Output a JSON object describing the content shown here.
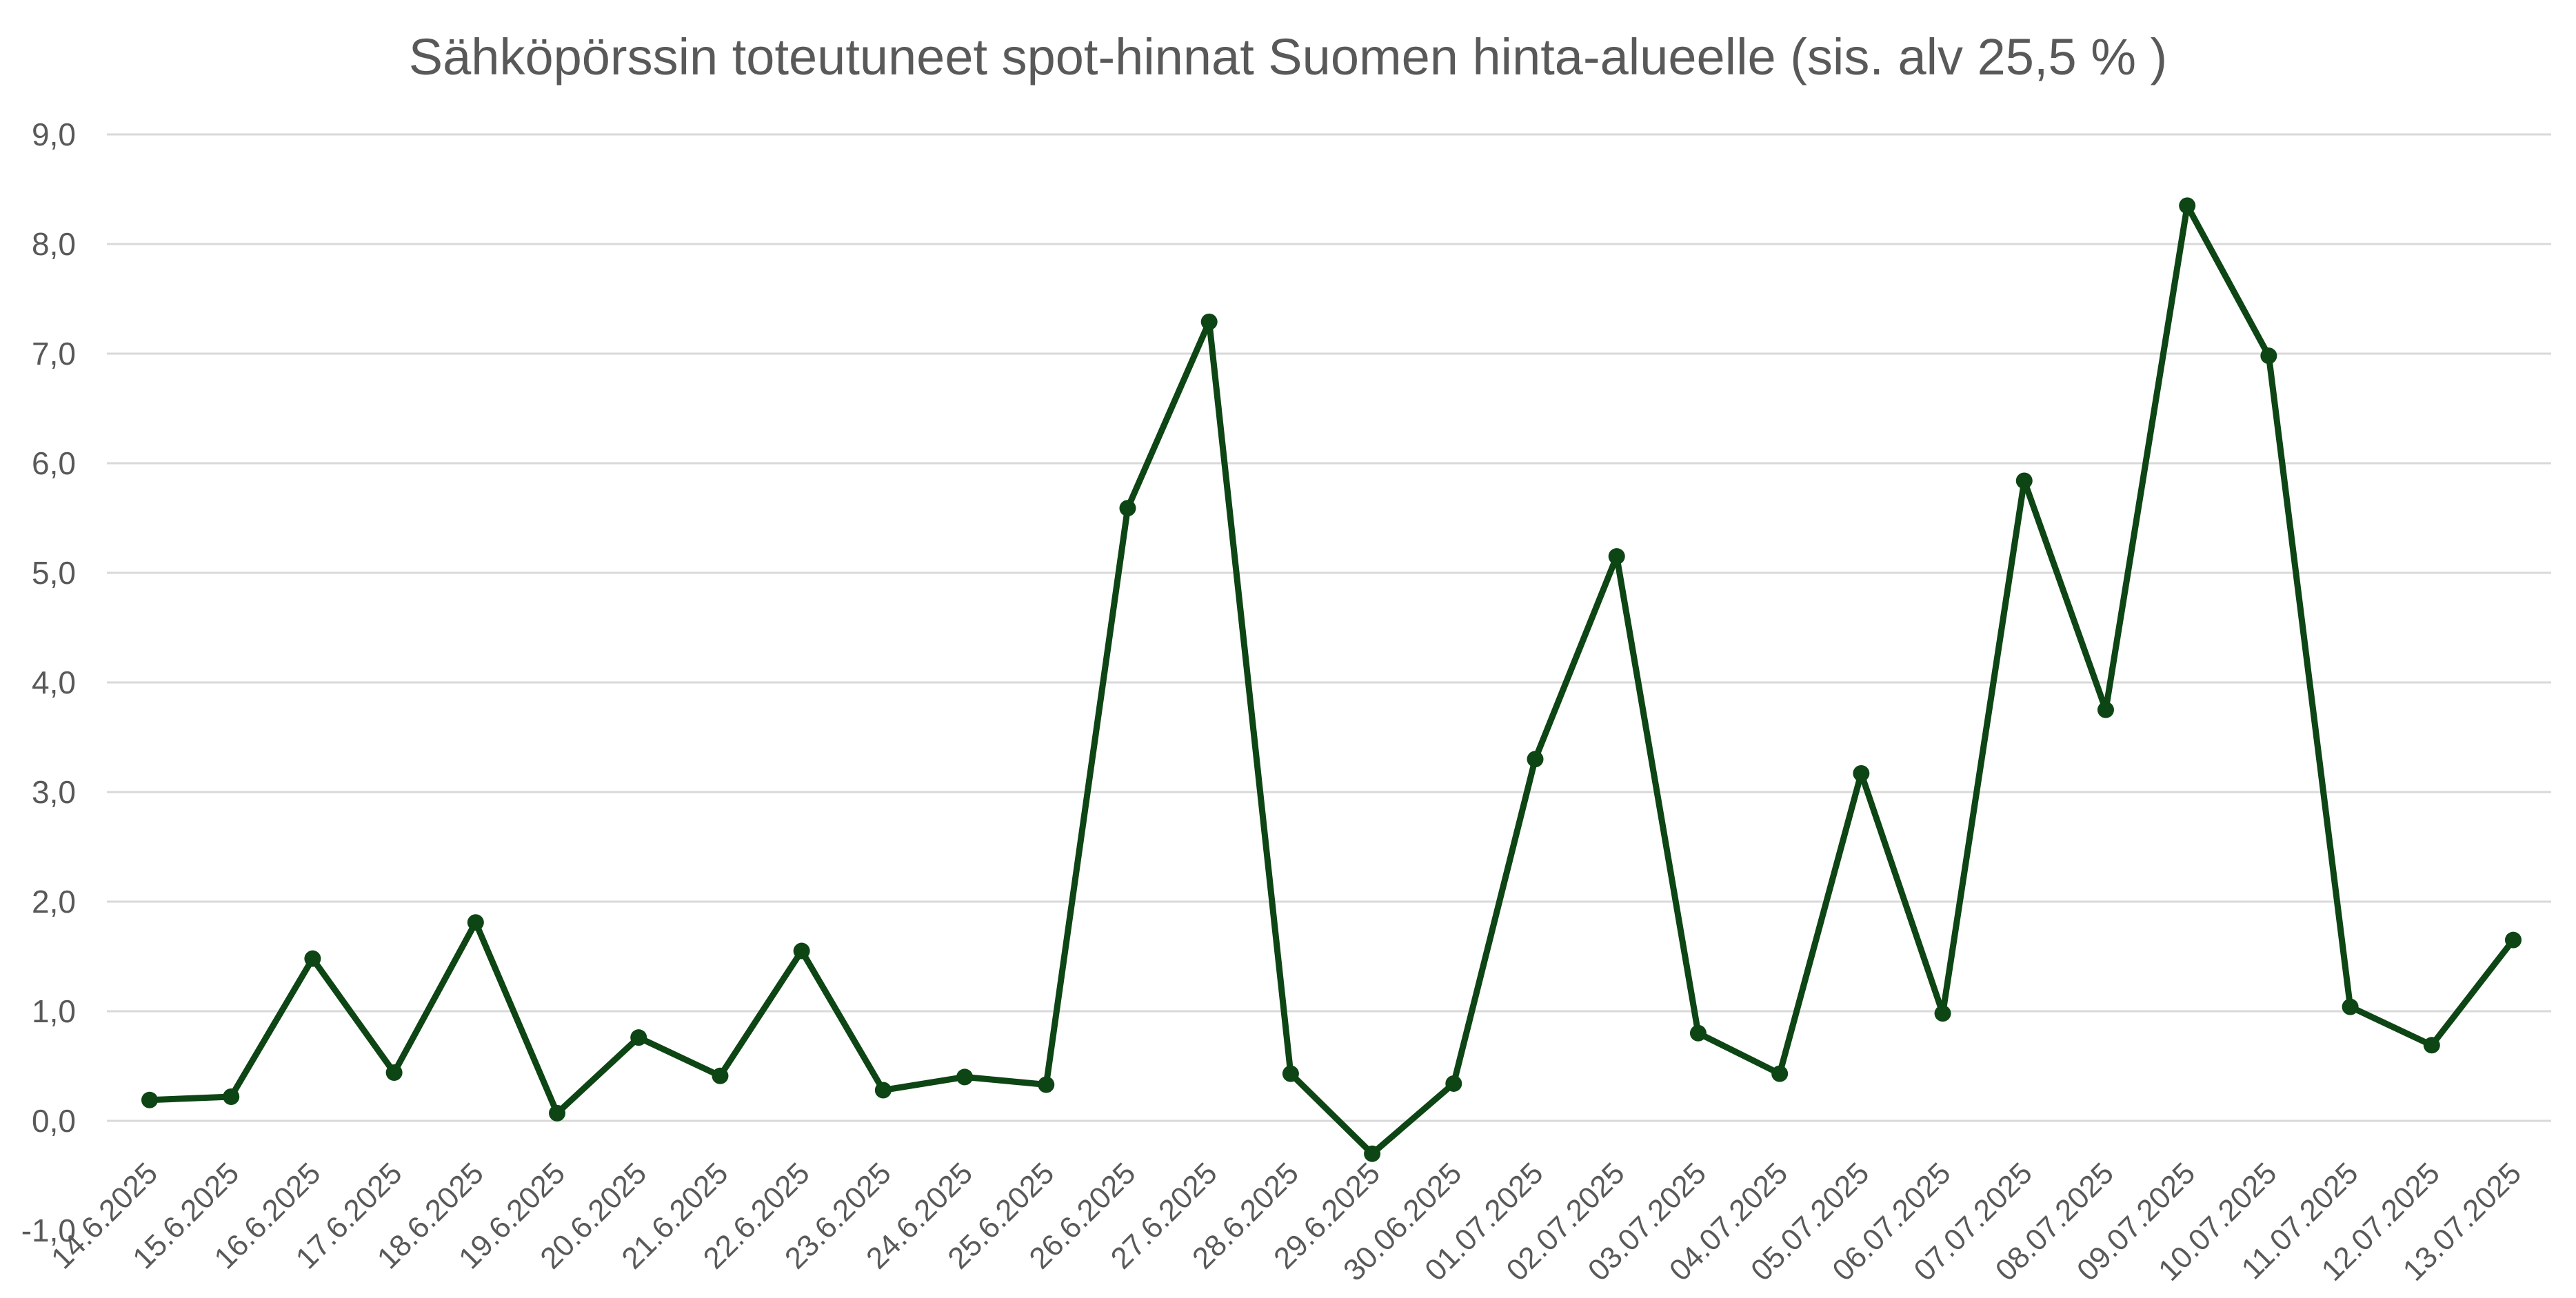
{
  "chart_data": {
    "type": "line",
    "title": "Sähköpörssin toteutuneet spot-hinnat Suomen hinta-alueelle (sis. alv 25,5 % )",
    "xlabel": "",
    "ylabel": "",
    "ylim": [
      -1.0,
      9.0
    ],
    "yticks": [
      "-1,0",
      "0,0",
      "1,0",
      "2,0",
      "3,0",
      "4,0",
      "5,0",
      "6,0",
      "7,0",
      "8,0",
      "9,0"
    ],
    "grid": true,
    "legend": "none",
    "line_color": "#0d4514",
    "categories": [
      "14.6.2025",
      "15.6.2025",
      "16.6.2025",
      "17.6.2025",
      "18.6.2025",
      "19.6.2025",
      "20.6.2025",
      "21.6.2025",
      "22.6.2025",
      "23.6.2025",
      "24.6.2025",
      "25.6.2025",
      "26.6.2025",
      "27.6.2025",
      "28.6.2025",
      "29.6.2025",
      "30.06.2025",
      "01.07.2025",
      "02.07.2025",
      "03.07.2025",
      "04.07.2025",
      "05.07.2025",
      "06.07.2025",
      "07.07.2025",
      "08.07.2025",
      "09.07.2025",
      "10.07.2025",
      "11.07.2025",
      "12.07.2025",
      "13.07.2025"
    ],
    "series": [
      {
        "values": [
          0.19,
          0.22,
          1.48,
          0.44,
          1.81,
          0.07,
          0.76,
          0.41,
          1.55,
          0.28,
          0.4,
          0.33,
          5.59,
          7.29,
          0.43,
          -0.3,
          0.34,
          3.3,
          5.15,
          0.8,
          0.43,
          3.17,
          0.98,
          5.84,
          3.75,
          8.35,
          6.98,
          1.04,
          0.69,
          1.65
        ]
      }
    ]
  }
}
